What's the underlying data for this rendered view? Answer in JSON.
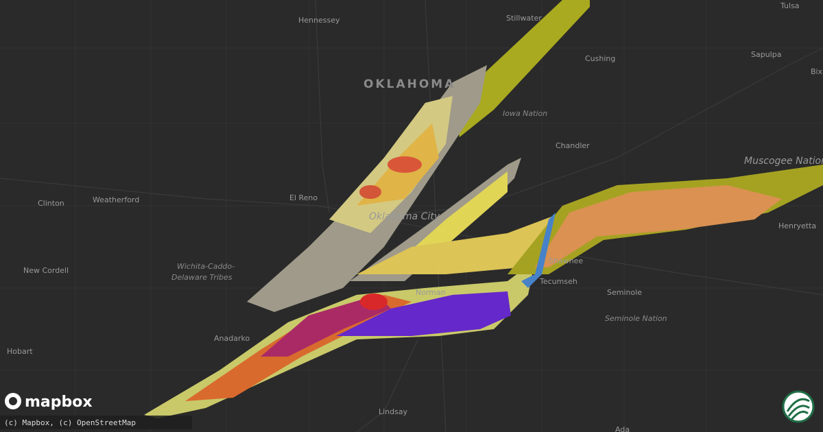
{
  "map": {
    "state_label": "OKLAHOMA",
    "places": [
      "Hennessey",
      "Stillwater",
      "Tulsa",
      "Sapulpa",
      "Bixby",
      "Cushing",
      "Iowa Nation",
      "Chandler",
      "Muscogee Nation",
      "El Reno",
      "Oklahoma City",
      "Clinton",
      "Weatherford",
      "New Cordell",
      "Wichita-Caddo-",
      "Delaware Tribes",
      "Norman",
      "Shawnee",
      "Tecumseh",
      "Seminole",
      "Seminole Nation",
      "Henryetta",
      "Anadarko",
      "Hobart",
      "Lindsay",
      "Ada"
    ]
  },
  "logo": "mapbox",
  "attribution": "(c) Mapbox, (c) OpenStreetMap"
}
